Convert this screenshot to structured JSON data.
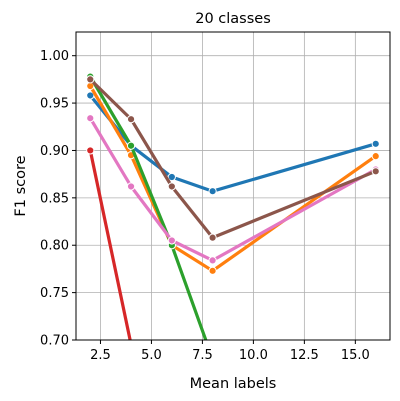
{
  "chart_data": {
    "type": "line",
    "title": "20 classes",
    "xlabel": "Mean labels",
    "ylabel": "F1 score",
    "xlim": [
      1.3,
      16.7
    ],
    "ylim": [
      0.7,
      1.025
    ],
    "xticks": [
      2.5,
      5.0,
      7.5,
      10.0,
      12.5,
      15.0
    ],
    "xtick_labels": [
      "2.5",
      "5.0",
      "7.5",
      "10.0",
      "12.5",
      "15.0"
    ],
    "yticks": [
      0.7,
      0.75,
      0.8,
      0.85,
      0.9,
      0.95,
      1.0
    ],
    "ytick_labels": [
      "0.70",
      "0.75",
      "0.80",
      "0.85",
      "0.90",
      "0.95",
      "1.00"
    ],
    "grid": true,
    "series": [
      {
        "color": "#1f77b4",
        "x": [
          2,
          4,
          6,
          8,
          16
        ],
        "y": [
          0.958,
          0.905,
          0.872,
          0.857,
          0.907
        ]
      },
      {
        "color": "#ff7f0e",
        "x": [
          2,
          4,
          6,
          8,
          16
        ],
        "y": [
          0.968,
          0.895,
          0.8,
          0.773,
          0.894
        ]
      },
      {
        "color": "#2ca02c",
        "x": [
          2,
          4,
          6,
          8
        ],
        "y": [
          0.978,
          0.905,
          0.8,
          0.68
        ]
      },
      {
        "color": "#d62728",
        "x": [
          2,
          4
        ],
        "y": [
          0.9,
          0.695
        ]
      },
      {
        "color": "#e377c2",
        "x": [
          2,
          4,
          6,
          8,
          16
        ],
        "y": [
          0.934,
          0.862,
          0.805,
          0.784,
          0.88
        ]
      },
      {
        "color": "#8c564b",
        "x": [
          2,
          4,
          6,
          8,
          16
        ],
        "y": [
          0.975,
          0.933,
          0.862,
          0.808,
          0.878
        ]
      }
    ]
  }
}
